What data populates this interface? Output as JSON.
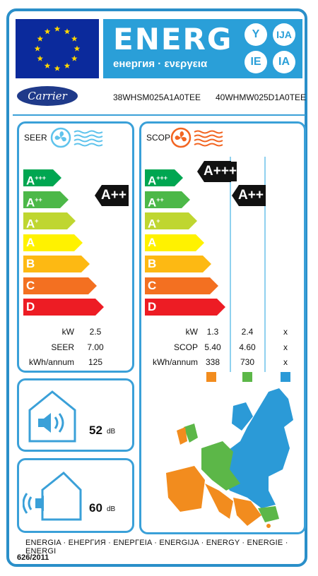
{
  "header": {
    "energy_word": "ENERG",
    "energy_sub": "енергия · ενεργεια",
    "lang_circles": [
      "Y",
      "IJA",
      "IE",
      "IA"
    ]
  },
  "brand": {
    "logo_text": "Carrier"
  },
  "models": {
    "indoor": "38WHSM025A1A0TEE",
    "outdoor": "40WHMW025D1A0TEE"
  },
  "classes": [
    "A+++",
    "A++",
    "A+",
    "A",
    "B",
    "C",
    "D"
  ],
  "colors": {
    "class_colors": [
      "#00a651",
      "#4cb848",
      "#bfd630",
      "#fff200",
      "#fdb913",
      "#f37021",
      "#ed1c24"
    ],
    "frame": "#2a8fc9",
    "energy_band": "#2a9fd8"
  },
  "seer": {
    "title": "SEER",
    "rating": "A++",
    "rows": [
      {
        "label": "kW",
        "value": "2.5"
      },
      {
        "label": "SEER",
        "value": "7.00"
      },
      {
        "label": "kWh/annum",
        "value": "125"
      }
    ]
  },
  "scop": {
    "title": "SCOP",
    "ratings": [
      "A+++",
      "A++"
    ],
    "rows": [
      {
        "label": "kW",
        "values": [
          "1.3",
          "2.4",
          "x"
        ]
      },
      {
        "label": "SCOP",
        "values": [
          "5.40",
          "4.60",
          "x"
        ]
      },
      {
        "label": "kWh/annum",
        "values": [
          "338",
          "730",
          "x"
        ]
      }
    ],
    "zone_colors": [
      "#f28c1e",
      "#5cb748",
      "#2b9ad7"
    ]
  },
  "noise": {
    "indoor": {
      "value": "52",
      "unit": "dB"
    },
    "outdoor": {
      "value": "60",
      "unit": "dB"
    }
  },
  "footer": {
    "languages": "ENERGIA · ЕНЕРГИЯ · ΕΝΕΡΓΕΙΑ · ENERGIJA · ENERGY · ENERGIE · ENERGI",
    "regulation": "626/2011"
  }
}
